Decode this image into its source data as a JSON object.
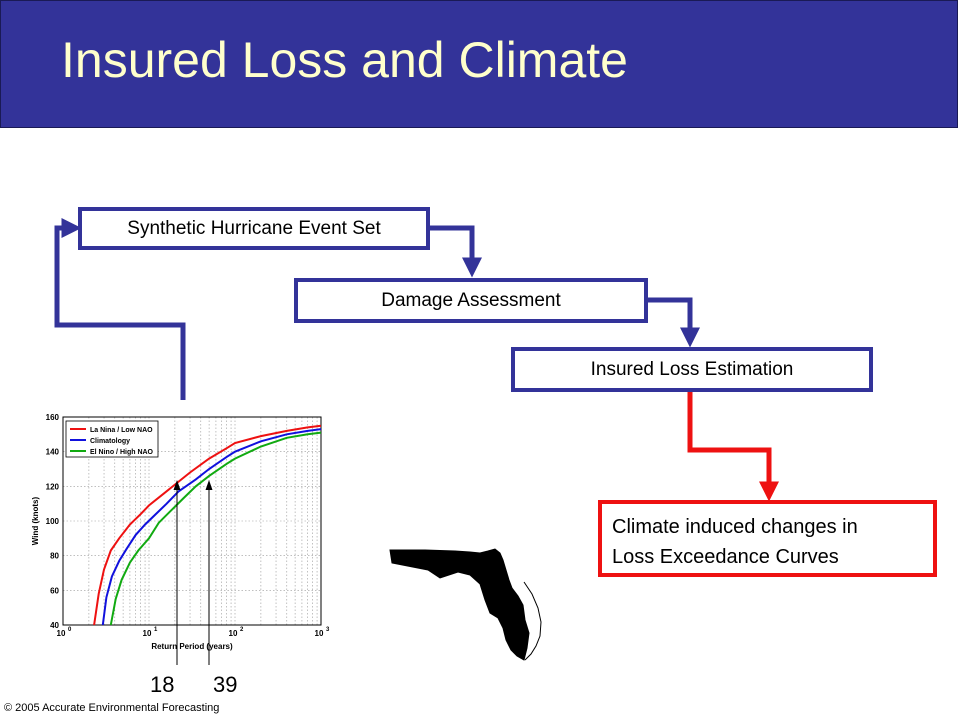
{
  "title": "Insured Loss and Climate",
  "colors": {
    "title_bar": "#333399",
    "title_text": "#ffffcc",
    "flow_arrow": "#333399",
    "result_arrow": "#ee1111"
  },
  "flow": {
    "step1": "Synthetic Hurricane Event Set",
    "step2": "Damage Assessment",
    "step3": "Insured Loss Estimation",
    "result_line1": "Climate induced changes in",
    "result_line2": "Loss Exceedance Curves"
  },
  "markers": {
    "a": "18",
    "b": "39"
  },
  "footer": "© 2005 Accurate Environmental Forecasting",
  "chart_data": {
    "type": "line",
    "xlabel": "Return Period (years)",
    "ylabel": "Wind (knots)",
    "xscale": "log",
    "xlim": [
      1,
      1000
    ],
    "ylim": [
      40,
      160
    ],
    "grid": true,
    "legend_position": "top-left",
    "xticks": [
      "10",
      "10",
      "10",
      "10"
    ],
    "xtick_exponents": [
      "0",
      "1",
      "2",
      "3"
    ],
    "yticks": [
      "40",
      "60",
      "80",
      "100",
      "120",
      "140",
      "160"
    ],
    "series": [
      {
        "name": "La Nina / Low NAO",
        "color": "#ee1111",
        "x": [
          2.3,
          2.6,
          3,
          3.6,
          4.5,
          6,
          8,
          10,
          15,
          20,
          30,
          50,
          80,
          100,
          200,
          400,
          700,
          1000
        ],
        "y": [
          40,
          58,
          72,
          83,
          90,
          98,
          104,
          109,
          116,
          121,
          128,
          136,
          142,
          145,
          149,
          152,
          154,
          155
        ]
      },
      {
        "name": "Climatology",
        "color": "#1111dd",
        "x": [
          2.9,
          3.2,
          3.7,
          4.5,
          5.5,
          7,
          9,
          12,
          16,
          22,
          35,
          50,
          80,
          100,
          200,
          400,
          700,
          1000
        ],
        "y": [
          40,
          56,
          68,
          77,
          84,
          92,
          98,
          104,
          110,
          117,
          124,
          130,
          137,
          140,
          146,
          150,
          152,
          153
        ]
      },
      {
        "name": "El Nino / High NAO",
        "color": "#11aa11",
        "x": [
          3.6,
          4.1,
          4.8,
          6,
          7.5,
          10,
          13,
          18,
          25,
          35,
          50,
          80,
          100,
          200,
          400,
          700,
          1000
        ],
        "y": [
          40,
          55,
          66,
          76,
          83,
          90,
          99,
          106,
          113,
          120,
          126,
          133,
          136,
          143,
          148,
          150,
          151
        ]
      }
    ]
  }
}
